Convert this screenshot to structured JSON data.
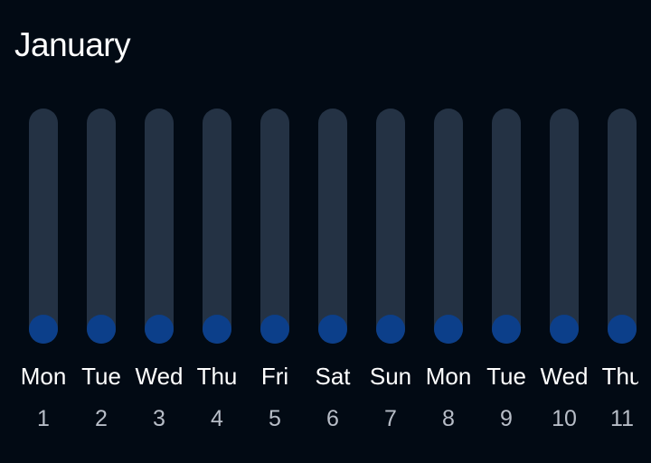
{
  "header": {
    "month": "January"
  },
  "colors": {
    "background": "#020a14",
    "track": "#243244",
    "knob": "#0c3f8a",
    "day_name": "#ffffff",
    "day_number": "#b7bdc7"
  },
  "days": [
    {
      "name": "Mon",
      "number": "1",
      "level": 0
    },
    {
      "name": "Tue",
      "number": "2",
      "level": 0
    },
    {
      "name": "Wed",
      "number": "3",
      "level": 0
    },
    {
      "name": "Thu",
      "number": "4",
      "level": 0
    },
    {
      "name": "Fri",
      "number": "5",
      "level": 0
    },
    {
      "name": "Sat",
      "number": "6",
      "level": 0
    },
    {
      "name": "Sun",
      "number": "7",
      "level": 0
    },
    {
      "name": "Mon",
      "number": "8",
      "level": 0
    },
    {
      "name": "Tue",
      "number": "9",
      "level": 0
    },
    {
      "name": "Wed",
      "number": "10",
      "level": 0
    },
    {
      "name": "Thu",
      "number": "11",
      "level": 0
    }
  ]
}
